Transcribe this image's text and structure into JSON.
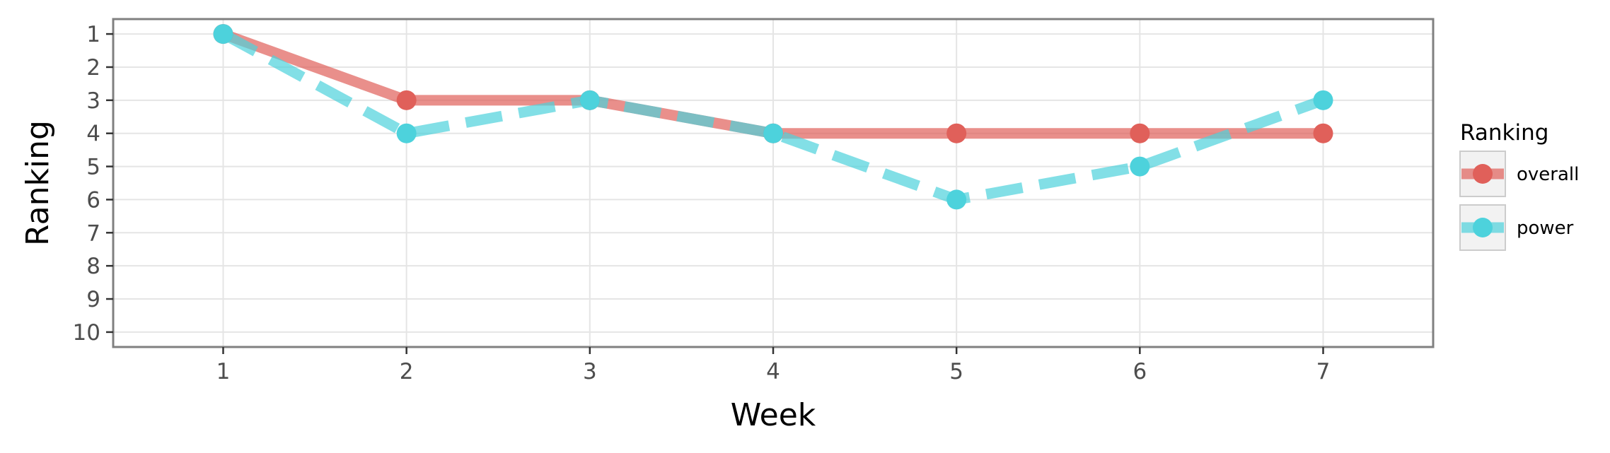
{
  "chart_data": {
    "type": "line",
    "xlabel": "Week",
    "ylabel": "Ranking",
    "x": [
      1,
      2,
      3,
      4,
      5,
      6,
      7
    ],
    "xlim": [
      0.4,
      7.6
    ],
    "ylim": [
      10.45,
      0.55
    ],
    "y_reversed": true,
    "x_ticks": [
      "1",
      "2",
      "3",
      "4",
      "5",
      "6",
      "7"
    ],
    "y_ticks": [
      "1",
      "2",
      "3",
      "4",
      "5",
      "6",
      "7",
      "8",
      "9",
      "10"
    ],
    "grid": true,
    "legend": {
      "title": "Ranking",
      "position": "right"
    },
    "series": [
      {
        "name": "overall",
        "values": [
          1,
          3,
          3,
          4,
          4,
          4,
          4
        ],
        "color": "#e0605a",
        "line_style": "solid"
      },
      {
        "name": "power",
        "values": [
          1,
          4,
          3,
          4,
          6,
          5,
          3
        ],
        "color": "#4dd2dc",
        "line_style": "dashed"
      }
    ]
  }
}
